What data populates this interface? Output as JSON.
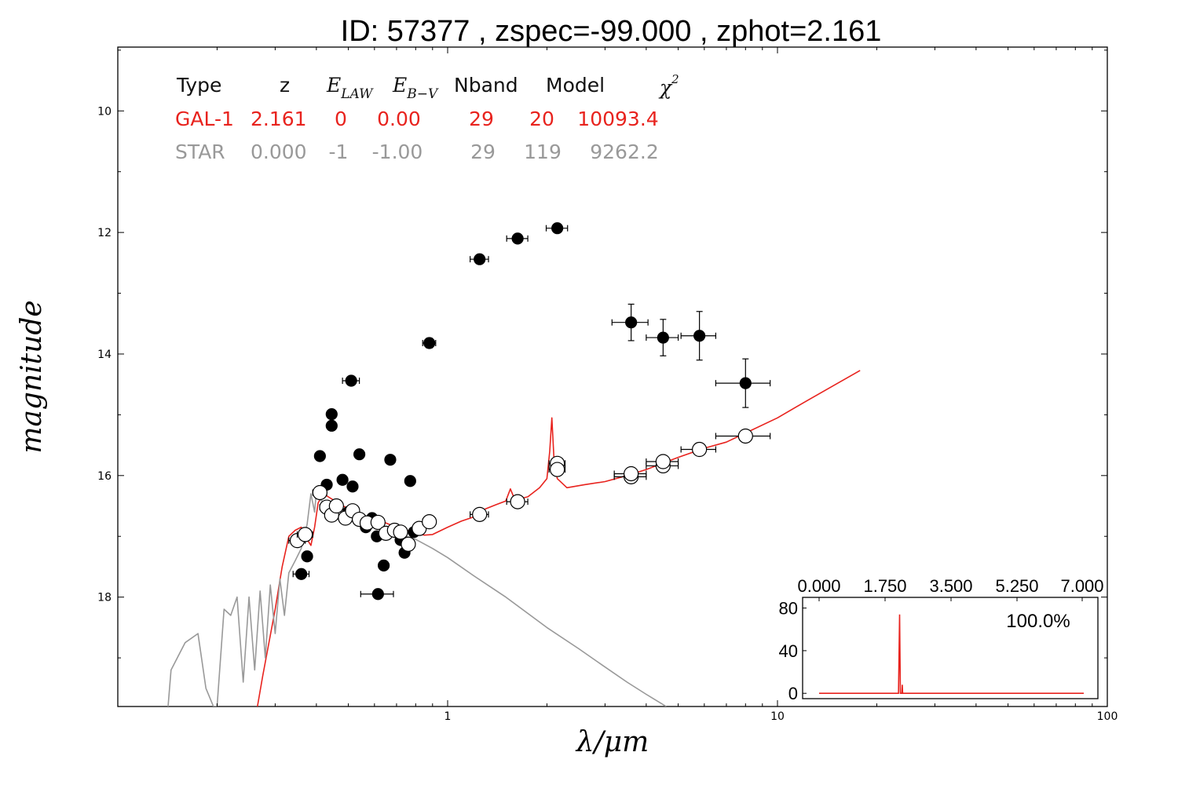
{
  "title": "ID:  57377 , zspec=-99.000 , zphot=2.161",
  "chart_data": {
    "type": "scatter",
    "title": "ID:  57377 , zspec=-99.000 , zphot=2.161",
    "xlabel": "λ/μm",
    "ylabel": "magnitude",
    "x_scale": "log",
    "xlim": [
      0.1,
      100
    ],
    "ylim": [
      19.8,
      8.95
    ],
    "y_inverted": true,
    "x_ticks": [
      "1",
      "10",
      "100"
    ],
    "y_ticks": [
      "10",
      "12",
      "14",
      "16",
      "18"
    ],
    "grid": false,
    "info_table": {
      "headers": [
        "Type",
        "z",
        "E_LAW",
        "E_B-V",
        "Nband",
        "Model",
        "χ²"
      ],
      "header_display": {
        "type": "Type",
        "z": "z",
        "elaw_main": "E",
        "elaw_sub": "LAW",
        "ebv_main": "E",
        "ebv_sub": "B−V",
        "nband": "Nband",
        "model": "Model",
        "chi_main": "χ",
        "chi_sup": "2"
      },
      "rows": [
        {
          "type": "GAL-1",
          "z": "2.161",
          "elaw": "0",
          "ebv": "0.00",
          "nband": "29",
          "model": "20",
          "chi2": "10093.4",
          "color": "#e8231e"
        },
        {
          "type": "STAR",
          "z": "0.000",
          "elaw": "-1",
          "ebv": "-1.00",
          "nband": "29",
          "model": "119",
          "chi2": "9262.2",
          "color": "#999999"
        }
      ]
    },
    "series": [
      {
        "kind": "observed",
        "marker": "filled-circle",
        "color": "#000000",
        "points": [
          {
            "x": 0.36,
            "y": 17.62,
            "xerr": 0.02,
            "yerr": 0.05
          },
          {
            "x": 0.375,
            "y": 17.33,
            "xerr": 0.01,
            "yerr": 0.05
          },
          {
            "x": 0.41,
            "y": 15.68,
            "xerr": 0.01,
            "yerr": 0.03
          },
          {
            "x": 0.43,
            "y": 16.15,
            "xerr": 0.01,
            "yerr": 0.03
          },
          {
            "x": 0.445,
            "y": 15.18,
            "xerr": 0.01,
            "yerr": 0.06
          },
          {
            "x": 0.445,
            "y": 14.99,
            "xerr": 0.01,
            "yerr": 0.03
          },
          {
            "x": 0.46,
            "y": 16.52,
            "xerr": 0.01,
            "yerr": 0.03
          },
          {
            "x": 0.48,
            "y": 16.07,
            "xerr": 0.01,
            "yerr": 0.03
          },
          {
            "x": 0.5,
            "y": 16.6,
            "xerr": 0.01,
            "yerr": 0.03
          },
          {
            "x": 0.51,
            "y": 14.44,
            "xerr": 0.03,
            "yerr": 0.05
          },
          {
            "x": 0.515,
            "y": 16.18,
            "xerr": 0.01,
            "yerr": 0.03
          },
          {
            "x": 0.54,
            "y": 15.65,
            "xerr": 0.01,
            "yerr": 0.03
          },
          {
            "x": 0.565,
            "y": 16.85,
            "xerr": 0.01,
            "yerr": 0.03
          },
          {
            "x": 0.59,
            "y": 16.7,
            "xerr": 0.01,
            "yerr": 0.03
          },
          {
            "x": 0.61,
            "y": 17.0,
            "xerr": 0.01,
            "yerr": 0.03
          },
          {
            "x": 0.615,
            "y": 17.95,
            "xerr": 0.07,
            "yerr": 0.07
          },
          {
            "x": 0.64,
            "y": 17.48,
            "xerr": 0.01,
            "yerr": 0.03
          },
          {
            "x": 0.67,
            "y": 15.74,
            "xerr": 0.01,
            "yerr": 0.03
          },
          {
            "x": 0.69,
            "y": 16.9,
            "xerr": 0.01,
            "yerr": 0.03
          },
          {
            "x": 0.72,
            "y": 17.06,
            "xerr": 0.01,
            "yerr": 0.03
          },
          {
            "x": 0.74,
            "y": 17.27,
            "xerr": 0.01,
            "yerr": 0.03
          },
          {
            "x": 0.77,
            "y": 16.09,
            "xerr": 0.01,
            "yerr": 0.03
          },
          {
            "x": 0.79,
            "y": 16.93,
            "xerr": 0.02,
            "yerr": 0.05
          },
          {
            "x": 0.88,
            "y": 13.82,
            "xerr": 0.04,
            "yerr": 0.08
          },
          {
            "x": 1.25,
            "y": 12.44,
            "xerr": 0.08,
            "yerr": 0.04
          },
          {
            "x": 1.63,
            "y": 12.1,
            "xerr": 0.12,
            "yerr": 0.04
          },
          {
            "x": 2.15,
            "y": 11.93,
            "xerr": 0.16,
            "yerr": 0.04
          },
          {
            "x": 3.6,
            "y": 13.48,
            "xerr": 0.45,
            "yerr": 0.3
          },
          {
            "x": 4.5,
            "y": 13.73,
            "xerr": 0.5,
            "yerr": 0.3
          },
          {
            "x": 5.8,
            "y": 13.7,
            "xerr": 0.7,
            "yerr": 0.4
          },
          {
            "x": 8.0,
            "y": 14.48,
            "xerr": 1.5,
            "yerr": 0.4
          }
        ]
      },
      {
        "kind": "model-photometry",
        "marker": "open-circle",
        "color": "#000000",
        "points": [
          {
            "x": 0.35,
            "y": 17.07,
            "xerr": 0.02
          },
          {
            "x": 0.37,
            "y": 16.97,
            "xerr": 0.02
          },
          {
            "x": 0.41,
            "y": 16.28,
            "xerr": 0.02
          },
          {
            "x": 0.43,
            "y": 16.52,
            "xerr": 0.02
          },
          {
            "x": 0.445,
            "y": 16.65,
            "xerr": 0.02
          },
          {
            "x": 0.46,
            "y": 16.5,
            "xerr": 0.02
          },
          {
            "x": 0.49,
            "y": 16.7,
            "xerr": 0.02
          },
          {
            "x": 0.515,
            "y": 16.58,
            "xerr": 0.02
          },
          {
            "x": 0.54,
            "y": 16.72,
            "xerr": 0.02
          },
          {
            "x": 0.57,
            "y": 16.78,
            "xerr": 0.02
          },
          {
            "x": 0.615,
            "y": 16.77,
            "xerr": 0.02
          },
          {
            "x": 0.65,
            "y": 16.95,
            "xerr": 0.02
          },
          {
            "x": 0.69,
            "y": 16.9,
            "xerr": 0.02
          },
          {
            "x": 0.72,
            "y": 16.93,
            "xerr": 0.02
          },
          {
            "x": 0.76,
            "y": 17.13,
            "xerr": 0.02
          },
          {
            "x": 0.82,
            "y": 16.87,
            "xerr": 0.03
          },
          {
            "x": 0.88,
            "y": 16.76,
            "xerr": 0.04
          },
          {
            "x": 1.25,
            "y": 16.64,
            "xerr": 0.08
          },
          {
            "x": 1.63,
            "y": 16.43,
            "xerr": 0.12
          },
          {
            "x": 2.15,
            "y": 15.8,
            "xerr": 0.12
          },
          {
            "x": 2.15,
            "y": 15.9,
            "xerr": 0.12
          },
          {
            "x": 3.6,
            "y": 16.02,
            "xerr": 0.4
          },
          {
            "x": 3.6,
            "y": 15.97,
            "xerr": 0.4
          },
          {
            "x": 4.5,
            "y": 15.84,
            "xerr": 0.5
          },
          {
            "x": 4.5,
            "y": 15.77,
            "xerr": 0.5
          },
          {
            "x": 5.8,
            "y": 15.57,
            "xerr": 0.7
          },
          {
            "x": 8.0,
            "y": 15.35,
            "xerr": 1.5
          }
        ]
      },
      {
        "kind": "galaxy-template",
        "line": true,
        "color": "#e8231e",
        "points": [
          {
            "x": 0.265,
            "y": 19.8
          },
          {
            "x": 0.275,
            "y": 19.3
          },
          {
            "x": 0.285,
            "y": 18.85
          },
          {
            "x": 0.3,
            "y": 18.2
          },
          {
            "x": 0.315,
            "y": 17.5
          },
          {
            "x": 0.33,
            "y": 17.0
          },
          {
            "x": 0.345,
            "y": 16.9
          },
          {
            "x": 0.36,
            "y": 16.85
          },
          {
            "x": 0.37,
            "y": 17.0
          },
          {
            "x": 0.385,
            "y": 17.15
          },
          {
            "x": 0.395,
            "y": 16.85
          },
          {
            "x": 0.405,
            "y": 16.45
          },
          {
            "x": 0.42,
            "y": 16.3
          },
          {
            "x": 0.45,
            "y": 16.4
          },
          {
            "x": 0.5,
            "y": 16.55
          },
          {
            "x": 0.55,
            "y": 16.7
          },
          {
            "x": 0.6,
            "y": 16.75
          },
          {
            "x": 0.65,
            "y": 16.78
          },
          {
            "x": 0.7,
            "y": 16.85
          },
          {
            "x": 0.75,
            "y": 16.9
          },
          {
            "x": 0.8,
            "y": 16.95
          },
          {
            "x": 0.85,
            "y": 16.98
          },
          {
            "x": 0.9,
            "y": 16.97
          },
          {
            "x": 1.0,
            "y": 16.85
          },
          {
            "x": 1.1,
            "y": 16.75
          },
          {
            "x": 1.2,
            "y": 16.68
          },
          {
            "x": 1.3,
            "y": 16.55
          },
          {
            "x": 1.4,
            "y": 16.48
          },
          {
            "x": 1.5,
            "y": 16.42
          },
          {
            "x": 1.55,
            "y": 16.22
          },
          {
            "x": 1.6,
            "y": 16.4
          },
          {
            "x": 1.75,
            "y": 16.35
          },
          {
            "x": 1.9,
            "y": 16.2
          },
          {
            "x": 2.0,
            "y": 16.05
          },
          {
            "x": 2.04,
            "y": 15.6
          },
          {
            "x": 2.07,
            "y": 15.05
          },
          {
            "x": 2.1,
            "y": 15.7
          },
          {
            "x": 2.15,
            "y": 16.05
          },
          {
            "x": 2.3,
            "y": 16.2
          },
          {
            "x": 2.6,
            "y": 16.15
          },
          {
            "x": 3.0,
            "y": 16.1
          },
          {
            "x": 3.5,
            "y": 16.0
          },
          {
            "x": 4.0,
            "y": 15.9
          },
          {
            "x": 5.0,
            "y": 15.7
          },
          {
            "x": 6.0,
            "y": 15.55
          },
          {
            "x": 7.0,
            "y": 15.45
          },
          {
            "x": 8.0,
            "y": 15.3
          },
          {
            "x": 10.0,
            "y": 15.05
          },
          {
            "x": 12.0,
            "y": 14.8
          },
          {
            "x": 15.0,
            "y": 14.5
          },
          {
            "x": 17.8,
            "y": 14.27
          }
        ]
      },
      {
        "kind": "star-template",
        "line": true,
        "color": "#999999",
        "points": [
          {
            "x": 0.142,
            "y": 19.8
          },
          {
            "x": 0.145,
            "y": 19.2
          },
          {
            "x": 0.16,
            "y": 18.75
          },
          {
            "x": 0.175,
            "y": 18.6
          },
          {
            "x": 0.185,
            "y": 19.5
          },
          {
            "x": 0.195,
            "y": 19.8
          },
          {
            "x": 0.2,
            "y": 19.8
          },
          {
            "x": 0.21,
            "y": 18.2
          },
          {
            "x": 0.22,
            "y": 18.3
          },
          {
            "x": 0.23,
            "y": 18.0
          },
          {
            "x": 0.24,
            "y": 19.4
          },
          {
            "x": 0.25,
            "y": 18.0
          },
          {
            "x": 0.26,
            "y": 19.2
          },
          {
            "x": 0.27,
            "y": 17.9
          },
          {
            "x": 0.28,
            "y": 19.0
          },
          {
            "x": 0.29,
            "y": 17.8
          },
          {
            "x": 0.3,
            "y": 18.6
          },
          {
            "x": 0.31,
            "y": 17.7
          },
          {
            "x": 0.32,
            "y": 18.3
          },
          {
            "x": 0.33,
            "y": 17.6
          },
          {
            "x": 0.345,
            "y": 17.4
          },
          {
            "x": 0.36,
            "y": 17.2
          },
          {
            "x": 0.375,
            "y": 16.8
          },
          {
            "x": 0.385,
            "y": 16.3
          },
          {
            "x": 0.395,
            "y": 16.6
          },
          {
            "x": 0.4,
            "y": 16.25
          },
          {
            "x": 0.41,
            "y": 16.4
          },
          {
            "x": 0.43,
            "y": 16.45
          },
          {
            "x": 0.46,
            "y": 16.55
          },
          {
            "x": 0.5,
            "y": 16.65
          },
          {
            "x": 0.55,
            "y": 16.75
          },
          {
            "x": 0.6,
            "y": 16.82
          },
          {
            "x": 0.65,
            "y": 16.88
          },
          {
            "x": 0.7,
            "y": 16.95
          },
          {
            "x": 0.75,
            "y": 17.0
          },
          {
            "x": 0.8,
            "y": 17.05
          },
          {
            "x": 0.9,
            "y": 17.2
          },
          {
            "x": 1.0,
            "y": 17.35
          },
          {
            "x": 1.2,
            "y": 17.65
          },
          {
            "x": 1.5,
            "y": 18.0
          },
          {
            "x": 2.0,
            "y": 18.5
          },
          {
            "x": 2.5,
            "y": 18.85
          },
          {
            "x": 3.0,
            "y": 19.15
          },
          {
            "x": 3.5,
            "y": 19.4
          },
          {
            "x": 4.0,
            "y": 19.6
          },
          {
            "x": 4.6,
            "y": 19.8
          }
        ]
      }
    ],
    "inset": {
      "type": "line",
      "xlim": [
        0.0,
        7.0
      ],
      "ylim": [
        -5,
        90
      ],
      "x_ticks": [
        "0.000",
        "1.750",
        "3.500",
        "5.250",
        "7.000"
      ],
      "y_ticks": [
        "0",
        "40",
        "80"
      ],
      "annotation": "100.0%",
      "color": "#e8231e",
      "points": [
        {
          "x": 0.0,
          "y": 0
        },
        {
          "x": 2.1,
          "y": 0
        },
        {
          "x": 2.13,
          "y": 74
        },
        {
          "x": 2.15,
          "y": 0
        },
        {
          "x": 2.19,
          "y": 0
        },
        {
          "x": 2.2,
          "y": 8
        },
        {
          "x": 2.21,
          "y": 0
        },
        {
          "x": 7.0,
          "y": 0
        }
      ]
    }
  }
}
